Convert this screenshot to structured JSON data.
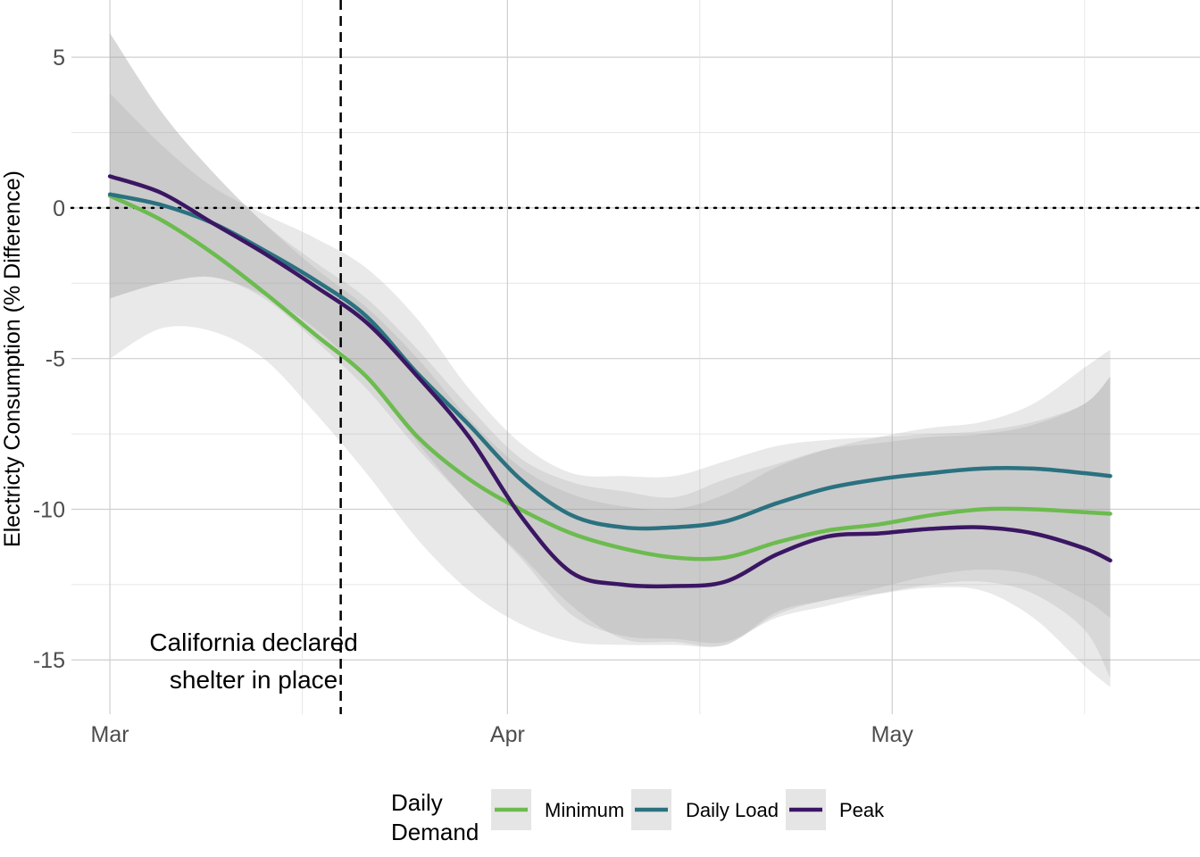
{
  "chart_data": {
    "type": "line",
    "title": "",
    "xlabel": "",
    "ylabel": "Electricty Consumption (% Difference)",
    "x_ticks": [
      "Mar",
      "Apr",
      "May"
    ],
    "y_ticks": [
      5,
      0,
      -5,
      -10,
      -15
    ],
    "ylim": [
      -16.8,
      6.9
    ],
    "xlim": [
      "2020-02-27",
      "2020-05-25"
    ],
    "grid": true,
    "x": [
      "2020-03-01",
      "2020-03-05",
      "2020-03-09",
      "2020-03-13",
      "2020-03-17",
      "2020-03-21",
      "2020-03-25",
      "2020-03-29",
      "2020-04-02",
      "2020-04-06",
      "2020-04-10",
      "2020-04-14",
      "2020-04-18",
      "2020-04-22",
      "2020-04-26",
      "2020-04-30",
      "2020-05-04",
      "2020-05-08",
      "2020-05-12",
      "2020-05-16",
      "2020-05-18"
    ],
    "series": [
      {
        "name": "Minimum",
        "color": "#6cbb4f",
        "values": [
          0.4,
          -0.4,
          -1.5,
          -2.8,
          -4.2,
          -5.6,
          -7.6,
          -9.0,
          -10.0,
          -10.8,
          -11.3,
          -11.6,
          -11.6,
          -11.1,
          -10.7,
          -10.5,
          -10.2,
          -10.0,
          -10.0,
          -10.1,
          -10.15
        ],
        "ci_lower": [
          -5.0,
          -4.0,
          -4.1,
          -5.0,
          -6.8,
          -8.8,
          -11.0,
          -12.7,
          -13.8,
          -14.4,
          -14.5,
          -14.5,
          -14.5,
          -13.5,
          -13.0,
          -12.8,
          -12.6,
          -12.7,
          -13.6,
          -15.2,
          -15.9
        ],
        "ci_upper": [
          5.8,
          3.2,
          1.2,
          -0.5,
          -2.0,
          -3.3,
          -5.0,
          -7.0,
          -8.6,
          -9.5,
          -9.9,
          -10.0,
          -9.5,
          -8.6,
          -8.0,
          -7.6,
          -7.3,
          -7.1,
          -6.5,
          -5.3,
          -4.7
        ]
      },
      {
        "name": "Daily Load",
        "color": "#2b7180",
        "values": [
          0.45,
          0.1,
          -0.5,
          -1.4,
          -2.4,
          -3.6,
          -5.5,
          -7.2,
          -9.0,
          -10.2,
          -10.6,
          -10.6,
          -10.4,
          -9.8,
          -9.3,
          -9.0,
          -8.8,
          -8.65,
          -8.65,
          -8.8,
          -8.9
        ],
        "ci_lower": [
          -3.0,
          -2.5,
          -2.3,
          -2.9,
          -4.0,
          -5.6,
          -7.8,
          -9.8,
          -11.5,
          -13.2,
          -14.3,
          -14.4,
          -14.5,
          -13.4,
          -13.0,
          -12.6,
          -12.2,
          -12.0,
          -12.2,
          -13.0,
          -13.6
        ],
        "ci_upper": [
          3.8,
          2.1,
          0.7,
          -0.2,
          -1.0,
          -2.0,
          -3.7,
          -6.0,
          -7.8,
          -8.8,
          -8.9,
          -8.9,
          -8.4,
          -7.9,
          -7.7,
          -7.6,
          -7.5,
          -7.4,
          -7.1,
          -6.5,
          -5.6
        ]
      },
      {
        "name": "Peak",
        "color": "#3b1663",
        "values": [
          1.05,
          0.5,
          -0.5,
          -1.5,
          -2.6,
          -3.8,
          -5.6,
          -7.6,
          -10.2,
          -12.1,
          -12.5,
          -12.55,
          -12.4,
          -11.5,
          -10.9,
          -10.8,
          -10.65,
          -10.6,
          -10.8,
          -11.3,
          -11.7
        ],
        "ci_lower": [
          -3.0,
          -2.5,
          -2.3,
          -3.0,
          -4.4,
          -6.0,
          -8.0,
          -9.8,
          -11.6,
          -13.5,
          -14.2,
          -14.3,
          -14.4,
          -13.6,
          -13.2,
          -12.8,
          -12.5,
          -12.4,
          -12.8,
          -14.0,
          -15.6
        ],
        "ci_upper": [
          5.8,
          3.2,
          1.2,
          -0.5,
          -1.8,
          -3.0,
          -4.7,
          -6.6,
          -8.3,
          -9.1,
          -9.4,
          -9.6,
          -9.0,
          -8.5,
          -8.0,
          -7.8,
          -7.6,
          -7.5,
          -7.2,
          -6.5,
          -5.6
        ]
      }
    ],
    "reference_lines": [
      {
        "axis": "y",
        "value": 0,
        "style": "dotted"
      },
      {
        "axis": "x",
        "value": "2020-03-19",
        "style": "dashed"
      }
    ],
    "annotations": [
      {
        "lines": [
          "California declared",
          "shelter in place"
        ],
        "x": "2020-03-12"
      }
    ],
    "legend": {
      "position": "bottom",
      "title_lines": [
        "Daily",
        "Demand"
      ],
      "entries": [
        "Minimum",
        "Daily Load",
        "Peak"
      ]
    }
  }
}
